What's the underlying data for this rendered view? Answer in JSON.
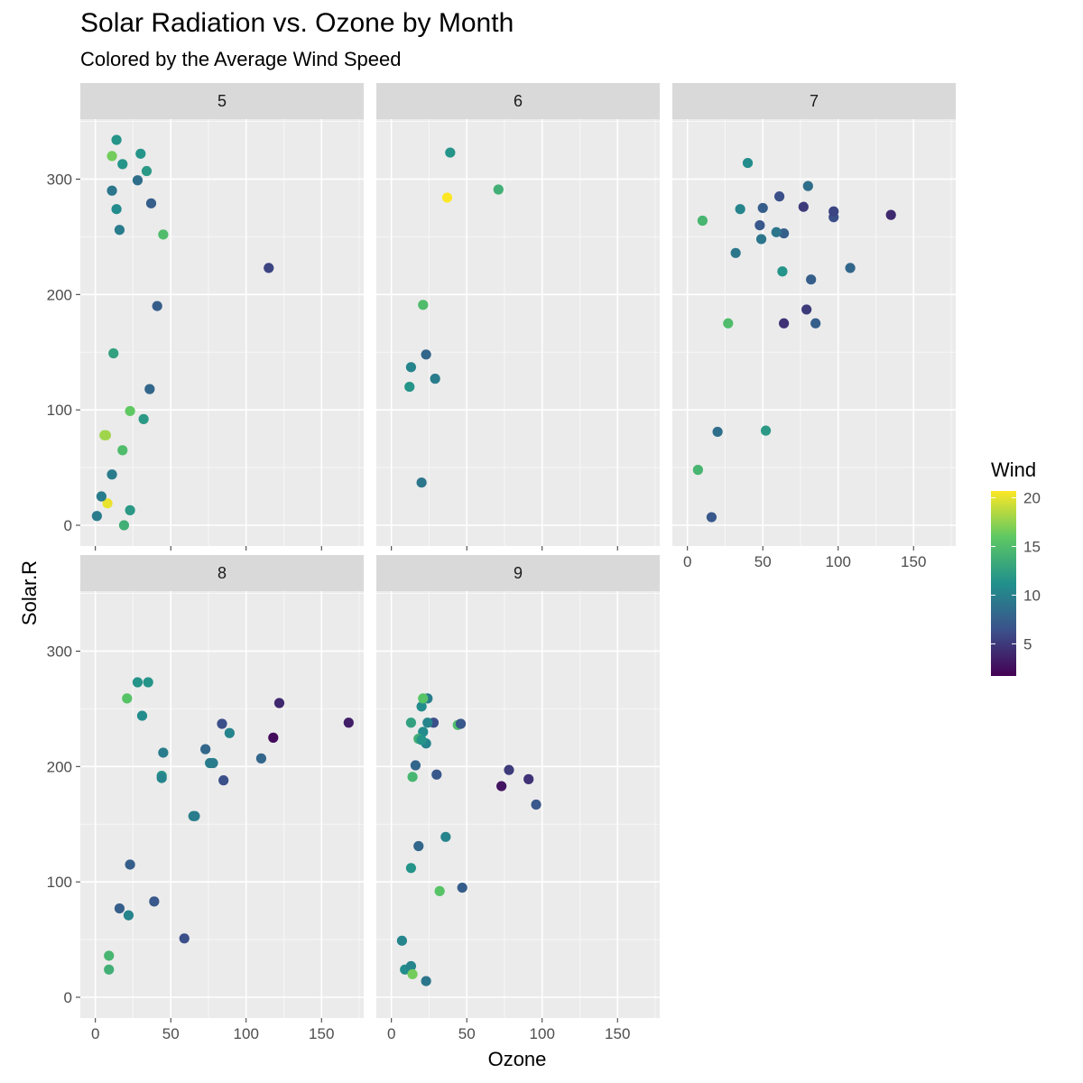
{
  "chart_data": {
    "type": "scatter",
    "title": "Solar Radiation vs. Ozone by Month",
    "subtitle": "Colored by the Average Wind Speed",
    "xlabel": "Ozone",
    "ylabel": "Solar.R",
    "xlim": [
      -10,
      178
    ],
    "ylim": [
      -18,
      352
    ],
    "x_ticks": [
      0,
      50,
      100,
      150
    ],
    "y_ticks": [
      0,
      100,
      200,
      300
    ],
    "grid": true,
    "legend": {
      "title": "Wind",
      "position": "right",
      "min": 1.7,
      "max": 20.7,
      "ticks": [
        5,
        10,
        15,
        20
      ],
      "colors": [
        "#440154",
        "#3b528b",
        "#21908c",
        "#5dc863",
        "#fde725"
      ]
    },
    "facets": [
      {
        "label": "5",
        "points": [
          [
            41,
            190,
            7.4
          ],
          [
            36,
            118,
            8.0
          ],
          [
            12,
            149,
            12.6
          ],
          [
            18,
            313,
            11.5
          ],
          [
            28,
            299,
            8.6
          ],
          [
            23,
            99,
            16.0
          ],
          [
            19,
            0,
            13.8
          ],
          [
            8,
            19,
            20.1
          ],
          [
            7,
            78,
            18.0
          ],
          [
            16,
            256,
            9.7
          ],
          [
            11,
            290,
            9.2
          ],
          [
            14,
            274,
            10.9
          ],
          [
            18,
            65,
            14.9
          ],
          [
            14,
            334,
            11.5
          ],
          [
            34,
            307,
            12.0
          ],
          [
            6,
            78,
            17.9
          ],
          [
            30,
            322,
            11.5
          ],
          [
            11,
            44,
            9.7
          ],
          [
            1,
            8,
            9.7
          ],
          [
            11,
            320,
            16.6
          ],
          [
            4,
            25,
            9.7
          ],
          [
            32,
            92,
            12.0
          ],
          [
            23,
            13,
            12.0
          ],
          [
            45,
            252,
            14.9
          ],
          [
            115,
            223,
            5.7
          ],
          [
            37,
            279,
            7.4
          ]
        ]
      },
      {
        "label": "6",
        "points": [
          [
            71,
            291,
            13.8
          ],
          [
            39,
            323,
            11.5
          ],
          [
            23,
            148,
            8.0
          ],
          [
            21,
            191,
            14.9
          ],
          [
            37,
            284,
            20.7
          ],
          [
            20,
            37,
            9.2
          ],
          [
            12,
            120,
            11.5
          ],
          [
            13,
            137,
            10.3
          ],
          [
            29,
            127,
            9.7
          ]
        ]
      },
      {
        "label": "7",
        "points": [
          [
            135,
            269,
            4.1
          ],
          [
            49,
            248,
            9.2
          ],
          [
            32,
            236,
            9.2
          ],
          [
            64,
            175,
            4.6
          ],
          [
            40,
            314,
            10.9
          ],
          [
            77,
            276,
            5.1
          ],
          [
            97,
            267,
            6.3
          ],
          [
            97,
            272,
            5.7
          ],
          [
            85,
            175,
            7.4
          ],
          [
            10,
            264,
            14.3
          ],
          [
            27,
            175,
            14.9
          ],
          [
            7,
            48,
            14.3
          ],
          [
            48,
            260,
            6.9
          ],
          [
            35,
            274,
            10.3
          ],
          [
            61,
            285,
            6.3
          ],
          [
            79,
            187,
            5.1
          ],
          [
            63,
            220,
            11.5
          ],
          [
            16,
            7,
            6.9
          ],
          [
            80,
            294,
            8.6
          ],
          [
            108,
            223,
            8.0
          ],
          [
            20,
            81,
            8.6
          ],
          [
            52,
            82,
            12.0
          ],
          [
            82,
            213,
            7.4
          ],
          [
            50,
            275,
            7.4
          ],
          [
            64,
            253,
            7.4
          ],
          [
            59,
            254,
            9.2
          ]
        ]
      },
      {
        "label": "8",
        "points": [
          [
            39,
            83,
            6.9
          ],
          [
            9,
            24,
            13.8
          ],
          [
            16,
            77,
            7.4
          ],
          [
            78,
            203,
            9.7
          ],
          [
            35,
            273,
            11.5
          ],
          [
            66,
            157,
            9.7
          ],
          [
            122,
            255,
            4.0
          ],
          [
            89,
            229,
            10.3
          ],
          [
            110,
            207,
            8.0
          ],
          [
            44,
            192,
            11.5
          ],
          [
            28,
            273,
            11.5
          ],
          [
            65,
            157,
            9.7
          ],
          [
            22,
            71,
            10.3
          ],
          [
            59,
            51,
            6.3
          ],
          [
            23,
            115,
            7.4
          ],
          [
            31,
            244,
            10.9
          ],
          [
            44,
            190,
            10.3
          ],
          [
            21,
            259,
            15.5
          ],
          [
            9,
            36,
            14.3
          ],
          [
            45,
            212,
            9.7
          ],
          [
            168,
            238,
            3.4
          ],
          [
            73,
            215,
            8.0
          ],
          [
            76,
            203,
            9.7
          ],
          [
            118,
            225,
            2.3
          ],
          [
            84,
            237,
            6.3
          ],
          [
            85,
            188,
            6.3
          ]
        ]
      },
      {
        "label": "9",
        "points": [
          [
            96,
            167,
            6.9
          ],
          [
            78,
            197,
            5.1
          ],
          [
            73,
            183,
            2.8
          ],
          [
            91,
            189,
            4.6
          ],
          [
            47,
            95,
            7.4
          ],
          [
            32,
            92,
            15.5
          ],
          [
            20,
            252,
            10.9
          ],
          [
            23,
            220,
            10.3
          ],
          [
            21,
            230,
            10.9
          ],
          [
            24,
            259,
            9.7
          ],
          [
            44,
            236,
            14.9
          ],
          [
            21,
            259,
            15.5
          ],
          [
            28,
            238,
            6.3
          ],
          [
            9,
            24,
            10.9
          ],
          [
            13,
            112,
            11.5
          ],
          [
            46,
            237,
            6.9
          ],
          [
            18,
            224,
            13.8
          ],
          [
            13,
            27,
            10.3
          ],
          [
            24,
            238,
            10.3
          ],
          [
            16,
            201,
            8.0
          ],
          [
            13,
            238,
            12.6
          ],
          [
            23,
            14,
            9.2
          ],
          [
            36,
            139,
            10.3
          ],
          [
            7,
            49,
            10.3
          ],
          [
            14,
            20,
            16.6
          ],
          [
            30,
            193,
            6.9
          ],
          [
            14,
            191,
            14.3
          ],
          [
            18,
            131,
            8.0
          ],
          [
            20,
            223,
            11.5
          ]
        ]
      }
    ]
  }
}
